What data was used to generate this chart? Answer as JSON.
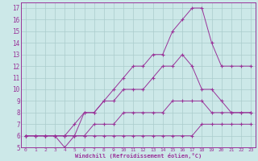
{
  "xlabel": "Windchill (Refroidissement éolien,°C)",
  "ylabel": "",
  "bg_color": "#cce8e8",
  "line_color": "#993399",
  "grid_color": "#aacccc",
  "xlim": [
    -0.5,
    23.5
  ],
  "ylim": [
    5,
    17.5
  ],
  "xticks": [
    0,
    1,
    2,
    3,
    4,
    5,
    6,
    7,
    8,
    9,
    10,
    11,
    12,
    13,
    14,
    15,
    16,
    17,
    18,
    19,
    20,
    21,
    22,
    23
  ],
  "yticks": [
    5,
    6,
    7,
    8,
    9,
    10,
    11,
    12,
    13,
    14,
    15,
    16,
    17
  ],
  "series": [
    {
      "x": [
        0,
        1,
        2,
        3,
        4,
        5,
        6,
        7,
        8,
        9,
        10,
        11,
        12,
        13,
        14,
        15,
        16,
        17,
        18,
        19,
        20,
        21,
        22,
        23
      ],
      "y": [
        6,
        6,
        6,
        6,
        6,
        6,
        6,
        6,
        6,
        6,
        6,
        6,
        6,
        6,
        6,
        6,
        6,
        6,
        7,
        7,
        7,
        7,
        7,
        7
      ]
    },
    {
      "x": [
        0,
        1,
        2,
        3,
        4,
        5,
        6,
        7,
        8,
        9,
        10,
        11,
        12,
        13,
        14,
        15,
        16,
        17,
        18,
        19,
        20,
        21,
        22,
        23
      ],
      "y": [
        6,
        6,
        6,
        6,
        6,
        6,
        6,
        7,
        7,
        7,
        8,
        8,
        8,
        8,
        8,
        9,
        9,
        9,
        9,
        8,
        8,
        8,
        8,
        8
      ]
    },
    {
      "x": [
        0,
        1,
        2,
        3,
        4,
        5,
        6,
        7,
        8,
        9,
        10,
        11,
        12,
        13,
        14,
        15,
        16,
        17,
        18,
        19,
        20,
        21,
        22,
        23
      ],
      "y": [
        6,
        6,
        6,
        6,
        6,
        7,
        8,
        8,
        9,
        9,
        10,
        10,
        10,
        11,
        12,
        12,
        13,
        12,
        10,
        10,
        9,
        8,
        8,
        8
      ]
    },
    {
      "x": [
        0,
        1,
        2,
        3,
        4,
        5,
        6,
        7,
        8,
        9,
        10,
        11,
        12,
        13,
        14,
        15,
        16,
        17,
        18,
        19,
        20,
        21,
        22,
        23
      ],
      "y": [
        6,
        6,
        6,
        6,
        5,
        6,
        8,
        8,
        9,
        10,
        11,
        12,
        12,
        13,
        13,
        15,
        16,
        17,
        17,
        14,
        12,
        12,
        12,
        12
      ]
    }
  ]
}
